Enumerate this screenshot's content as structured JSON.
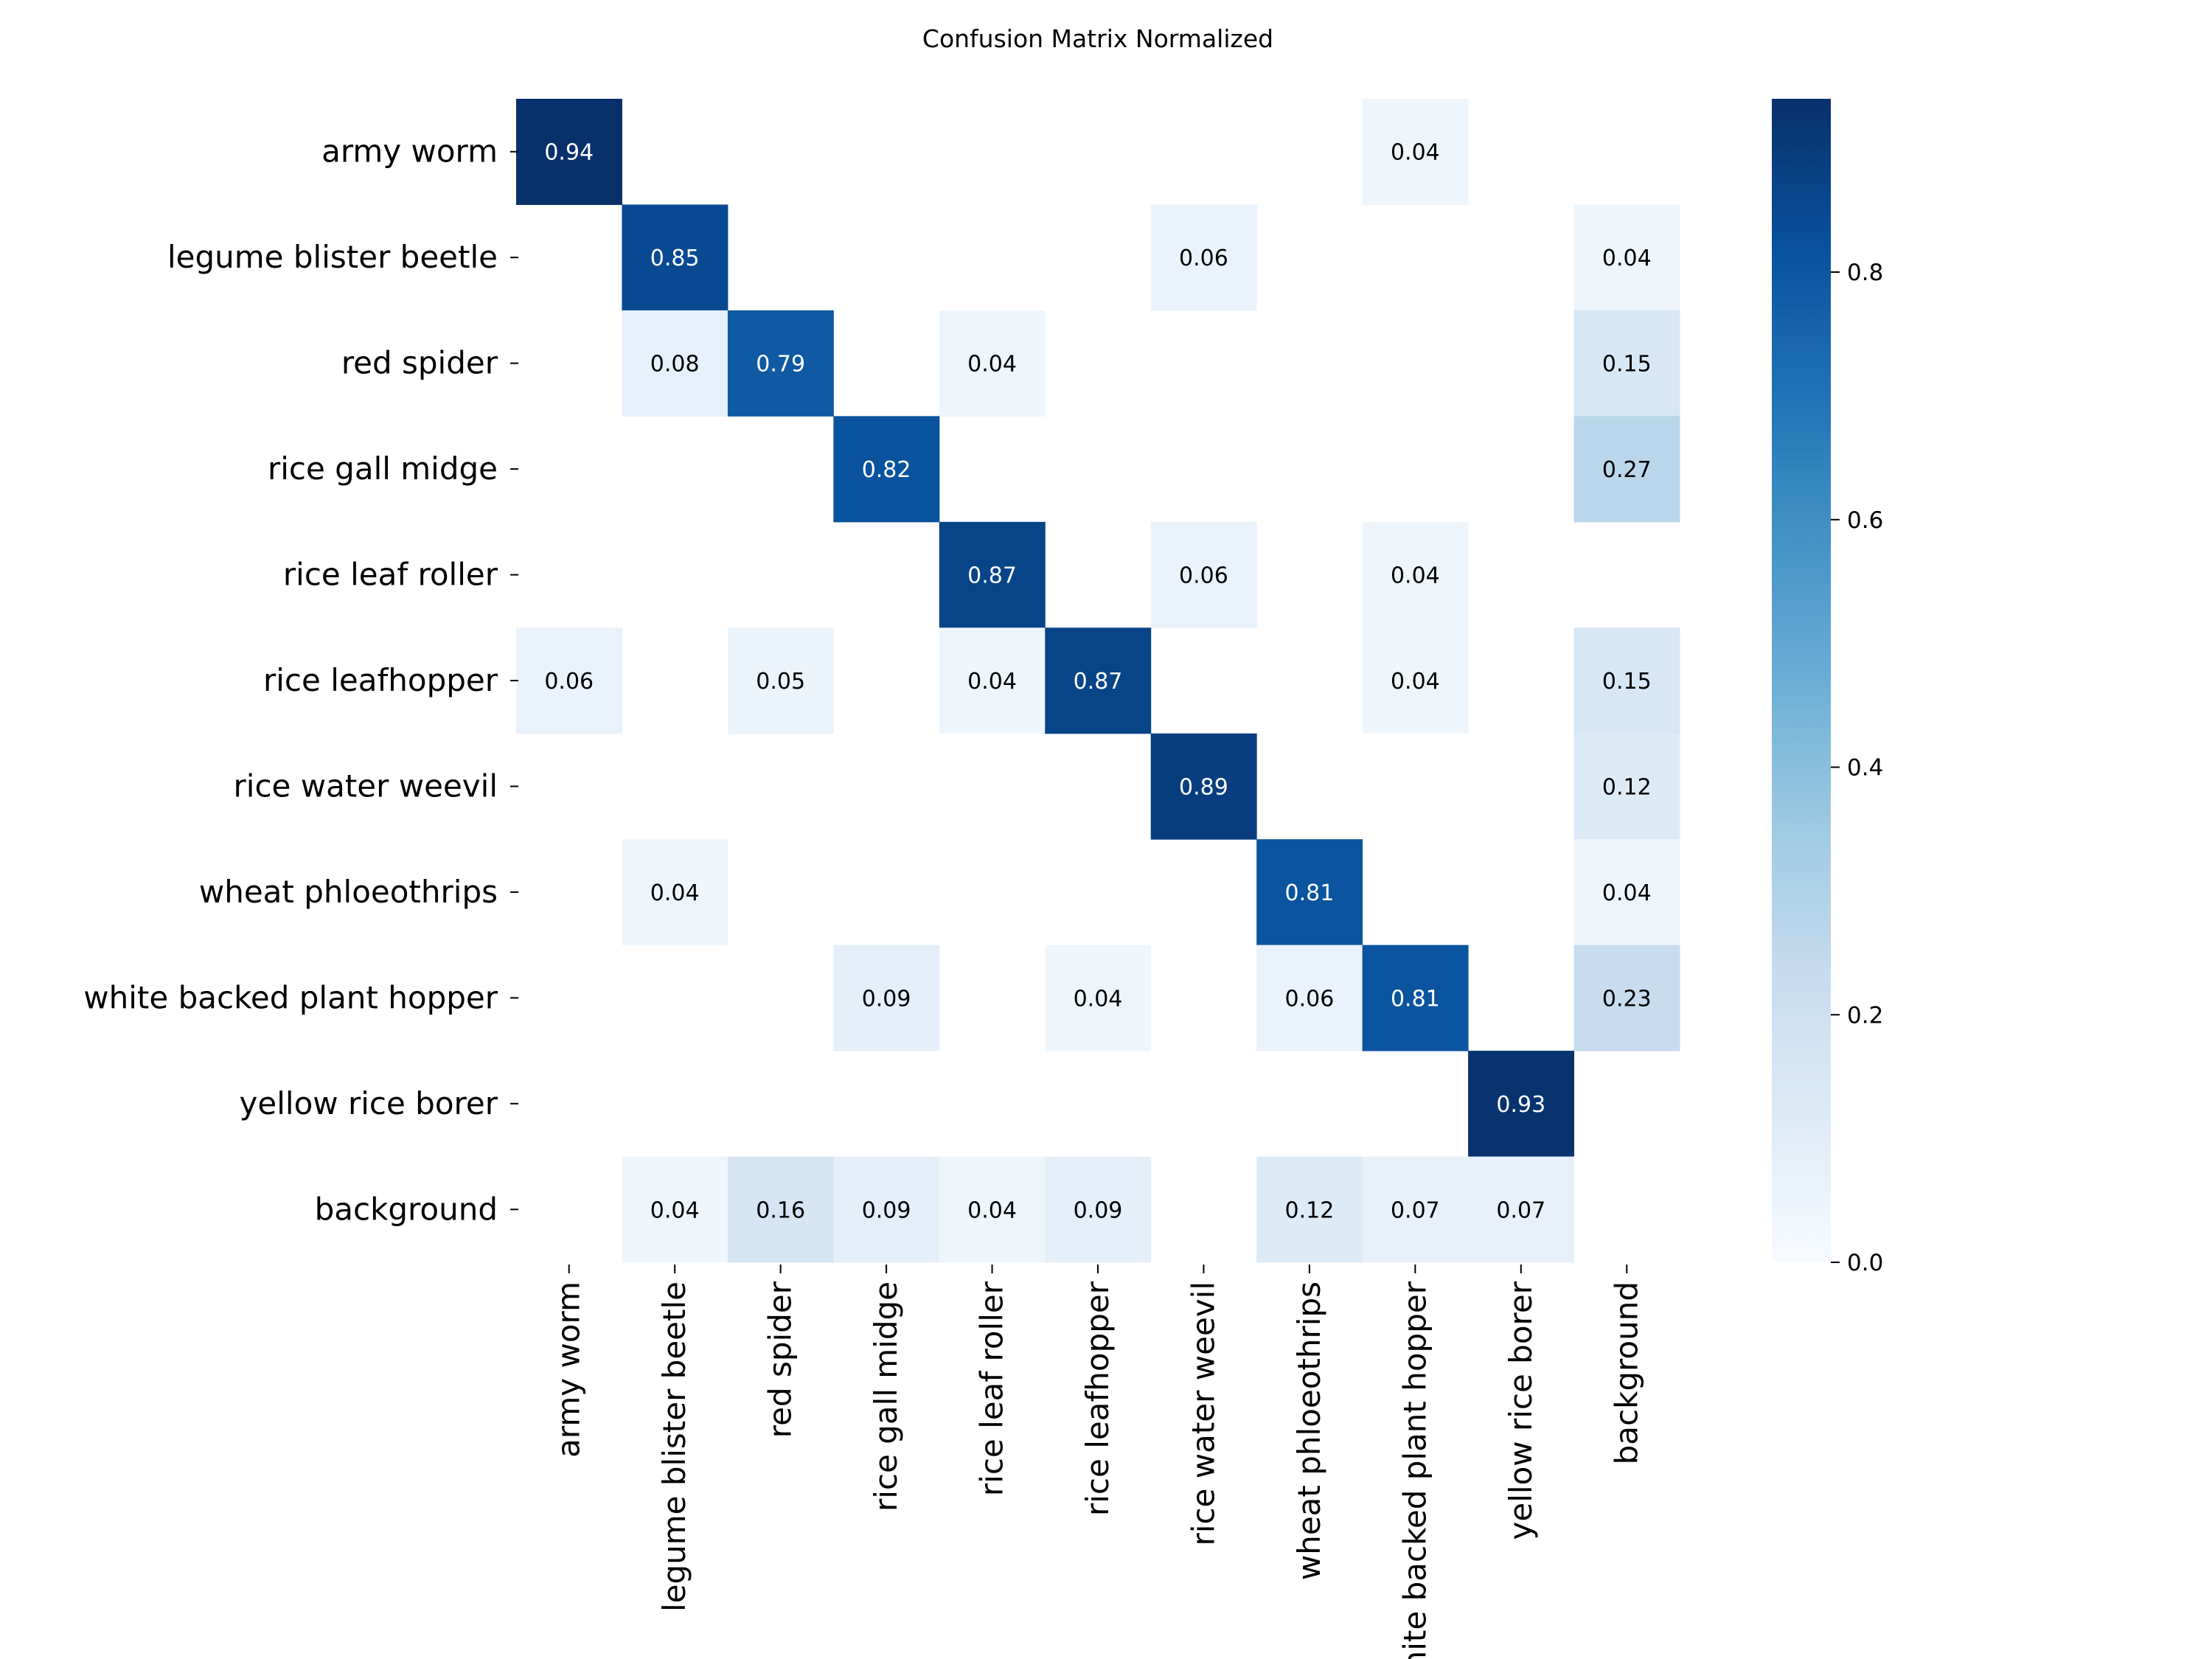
{
  "chart_data": {
    "type": "heatmap",
    "title": "Confusion Matrix Normalized",
    "xlabel": "",
    "ylabel": "",
    "row_labels": [
      "army worm",
      "legume blister beetle",
      "red spider",
      "rice gall midge",
      "rice leaf roller",
      "rice leafhopper",
      "rice water weevil",
      "wheat phloeothrips",
      "white backed plant hopper",
      "yellow rice borer",
      "background"
    ],
    "col_labels": [
      "army worm",
      "legume blister beetle",
      "red spider",
      "rice gall midge",
      "rice leaf roller",
      "rice leafhopper",
      "rice water weevil",
      "wheat phloeothrips",
      "white backed plant hopper",
      "yellow rice borer",
      "background"
    ],
    "values": [
      [
        0.94,
        null,
        null,
        null,
        null,
        null,
        null,
        null,
        0.04,
        null,
        null
      ],
      [
        null,
        0.85,
        null,
        null,
        null,
        null,
        0.06,
        null,
        null,
        null,
        0.04
      ],
      [
        null,
        0.08,
        0.79,
        null,
        0.04,
        null,
        null,
        null,
        null,
        null,
        0.15
      ],
      [
        null,
        null,
        null,
        0.82,
        null,
        null,
        null,
        null,
        null,
        null,
        0.27
      ],
      [
        null,
        null,
        null,
        null,
        0.87,
        null,
        0.06,
        null,
        0.04,
        null,
        null
      ],
      [
        0.06,
        null,
        0.05,
        null,
        0.04,
        0.87,
        null,
        null,
        0.04,
        null,
        0.15
      ],
      [
        null,
        null,
        null,
        null,
        null,
        null,
        0.89,
        null,
        null,
        null,
        0.12
      ],
      [
        null,
        0.04,
        null,
        null,
        null,
        null,
        null,
        0.81,
        null,
        null,
        0.04
      ],
      [
        null,
        null,
        null,
        0.09,
        null,
        0.04,
        null,
        0.06,
        0.81,
        null,
        0.23
      ],
      [
        null,
        null,
        null,
        null,
        null,
        null,
        null,
        null,
        null,
        0.93,
        null
      ],
      [
        null,
        0.04,
        0.16,
        0.09,
        0.04,
        0.09,
        null,
        0.12,
        0.07,
        0.07,
        null
      ]
    ],
    "colormap": "Blues",
    "colorbar": {
      "range": [
        0.0,
        0.94
      ],
      "ticks": [
        "0.0",
        "0.2",
        "0.4",
        "0.6",
        "0.8"
      ]
    },
    "grid": false,
    "legend": "colorbar-right"
  }
}
